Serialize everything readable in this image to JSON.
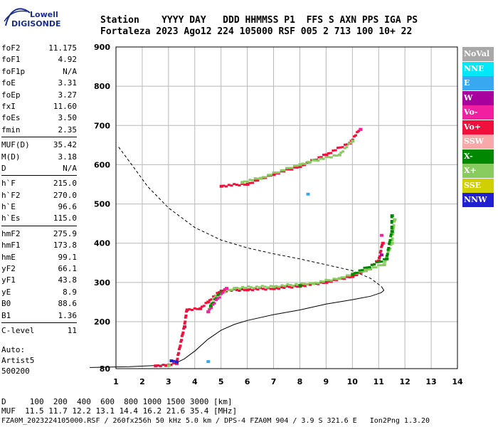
{
  "logo": {
    "line1": "Lowell",
    "line2": "DIGISONDE"
  },
  "header": {
    "row1": "Station    YYYY DAY   DDD HHMMSS P1  FFS S AXN PPS IGA PS",
    "row2": "Fortaleza 2023 Ago12 224 105000 RSF 005 2 713 100 10+ 22"
  },
  "params": [
    {
      "k": "foF2",
      "v": "11.175"
    },
    {
      "k": "foF1",
      "v": "4.92"
    },
    {
      "k": "foF1p",
      "v": "N/A"
    },
    {
      "k": "foE",
      "v": "3.31"
    },
    {
      "k": "foEp",
      "v": "3.27"
    },
    {
      "k": "fxI",
      "v": "11.60"
    },
    {
      "k": "foEs",
      "v": "3.50"
    },
    {
      "k": "fmin",
      "v": "2.35"
    },
    {
      "sep": true
    },
    {
      "k": "MUF(D)",
      "v": "35.42"
    },
    {
      "k": "M(D)",
      "v": "3.18"
    },
    {
      "k": "D",
      "v": "N/A"
    },
    {
      "sep": true
    },
    {
      "k": "h`F",
      "v": "215.0"
    },
    {
      "k": "h`F2",
      "v": "270.0"
    },
    {
      "k": "h`E",
      "v": "96.6"
    },
    {
      "k": "h`Es",
      "v": "115.0"
    },
    {
      "sep": true
    },
    {
      "k": "hmF2",
      "v": "275.9"
    },
    {
      "k": "hmF1",
      "v": "173.8"
    },
    {
      "k": "hmE",
      "v": "99.1"
    },
    {
      "k": "yF2",
      "v": "66.1"
    },
    {
      "k": "yF1",
      "v": "43.8"
    },
    {
      "k": "yE",
      "v": "8.9"
    },
    {
      "k": "B0",
      "v": "88.6"
    },
    {
      "k": "B1",
      "v": "1.36"
    },
    {
      "sep": true
    },
    {
      "k": "C-level",
      "v": "11"
    }
  ],
  "auto": {
    "line1": "Auto:",
    "line2": "Artist5",
    "line3": "500200"
  },
  "legend": [
    {
      "label": "NoVal",
      "color": "#a8a8a8"
    },
    {
      "label": "NNE",
      "color": "#00e8f8"
    },
    {
      "label": "E",
      "color": "#38a8f0"
    },
    {
      "label": "W",
      "color": "#a8009c"
    },
    {
      "label": "Vo-",
      "color": "#f020a0"
    },
    {
      "label": "Vo+",
      "color": "#f0103c"
    },
    {
      "label": "SSW",
      "color": "#f8a8a8"
    },
    {
      "label": "X-",
      "color": "#008800"
    },
    {
      "label": "X+",
      "color": "#88cc60"
    },
    {
      "label": "SSE",
      "color": "#d0d000"
    },
    {
      "label": "NNW",
      "color": "#2020d0"
    }
  ],
  "footer": {
    "line1": "D     100  200  400  600  800 1000 1500 3000 [km]",
    "line2": "MUF  11.5 11.7 12.2 13.1 14.4 16.2 21.6 35.4 [MHz]",
    "line3": "FZA0M_2023224105000.RSF / 260fx256h 50 kHz 5.0 km / DPS-4 FZA0M 904 / 3.9 S 321.6 E   Ion2Png 1.3.20"
  },
  "chart_data": {
    "type": "scatter",
    "x_ticks": [
      1,
      2,
      3,
      4,
      5,
      6,
      7,
      8,
      9,
      10,
      11,
      12,
      13,
      14
    ],
    "y_ticks": [
      80,
      200,
      300,
      400,
      500,
      600,
      700,
      800,
      900
    ],
    "xlim": [
      1,
      14
    ],
    "ylim": [
      80,
      900
    ],
    "grid": true,
    "series": [
      {
        "name": "Vo+",
        "color": "#f0103c",
        "points": [
          [
            2.5,
            87
          ],
          [
            2.9,
            88
          ],
          [
            3.3,
            93
          ],
          [
            3.6,
            187
          ],
          [
            3.7,
            230
          ],
          [
            4.2,
            233
          ],
          [
            4.5,
            250
          ],
          [
            5.0,
            278
          ],
          [
            6.0,
            281
          ],
          [
            7.0,
            284
          ],
          [
            8.0,
            290
          ],
          [
            9.0,
            300
          ],
          [
            10.0,
            315
          ],
          [
            10.5,
            330
          ],
          [
            11.0,
            355
          ],
          [
            11.15,
            400
          ],
          [
            5.0,
            545
          ],
          [
            6.0,
            550
          ],
          [
            7.0,
            575
          ],
          [
            8.0,
            595
          ],
          [
            9.0,
            625
          ],
          [
            9.9,
            655
          ],
          [
            10.3,
            690
          ]
        ]
      },
      {
        "name": "X+",
        "color": "#88cc60",
        "points": [
          [
            3.0,
            88
          ],
          [
            4.5,
            225
          ],
          [
            4.8,
            265
          ],
          [
            5.5,
            285
          ],
          [
            7.0,
            289
          ],
          [
            8.5,
            297
          ],
          [
            9.5,
            310
          ],
          [
            10.5,
            330
          ],
          [
            11.2,
            345
          ],
          [
            11.5,
            400
          ],
          [
            11.6,
            460
          ],
          [
            5.8,
            555
          ],
          [
            6.5,
            565
          ],
          [
            8.0,
            600
          ],
          [
            9.5,
            625
          ],
          [
            10.0,
            660
          ]
        ]
      },
      {
        "name": "X-",
        "color": "#008800",
        "points": [
          [
            4.6,
            240
          ],
          [
            5.0,
            275
          ],
          [
            8.0,
            292
          ],
          [
            10.0,
            320
          ],
          [
            11.3,
            360
          ],
          [
            11.5,
            430
          ],
          [
            11.5,
            470
          ]
        ]
      },
      {
        "name": "Vo-",
        "color": "#f020a0",
        "points": [
          [
            4.5,
            225
          ],
          [
            5.2,
            285
          ],
          [
            11.1,
            420
          ],
          [
            10.3,
            690
          ]
        ]
      },
      {
        "name": "NNW",
        "color": "#2020d0",
        "points": [
          [
            3.3,
            97
          ],
          [
            3.1,
            100
          ]
        ]
      },
      {
        "name": "E",
        "color": "#38a8f0",
        "points": [
          [
            4.5,
            98
          ],
          [
            8.3,
            525
          ]
        ]
      },
      {
        "name": "W",
        "color": "#a8009c",
        "points": [
          [
            11.1,
            370
          ]
        ]
      }
    ],
    "profile_solid": [
      [
        0,
        83
      ],
      [
        1.5,
        85
      ],
      [
        2.5,
        88
      ],
      [
        3.0,
        90
      ],
      [
        3.3,
        95
      ],
      [
        3.6,
        105
      ],
      [
        4.0,
        125
      ],
      [
        4.5,
        155
      ],
      [
        5.0,
        178
      ],
      [
        5.5,
        193
      ],
      [
        6.0,
        203
      ],
      [
        7.0,
        218
      ],
      [
        8.0,
        230
      ],
      [
        9.0,
        245
      ],
      [
        10.0,
        256
      ],
      [
        10.7,
        265
      ],
      [
        11.1,
        274
      ],
      [
        11.2,
        280
      ],
      [
        11.1,
        290
      ]
    ],
    "profile_dashed": [
      [
        1.1,
        645
      ],
      [
        1.6,
        600
      ],
      [
        2.2,
        545
      ],
      [
        3.0,
        490
      ],
      [
        4.0,
        440
      ],
      [
        5.0,
        408
      ],
      [
        6.0,
        388
      ],
      [
        7.0,
        373
      ],
      [
        8.0,
        360
      ],
      [
        9.0,
        345
      ],
      [
        10.0,
        330
      ],
      [
        10.7,
        310
      ],
      [
        11.1,
        290
      ]
    ]
  }
}
